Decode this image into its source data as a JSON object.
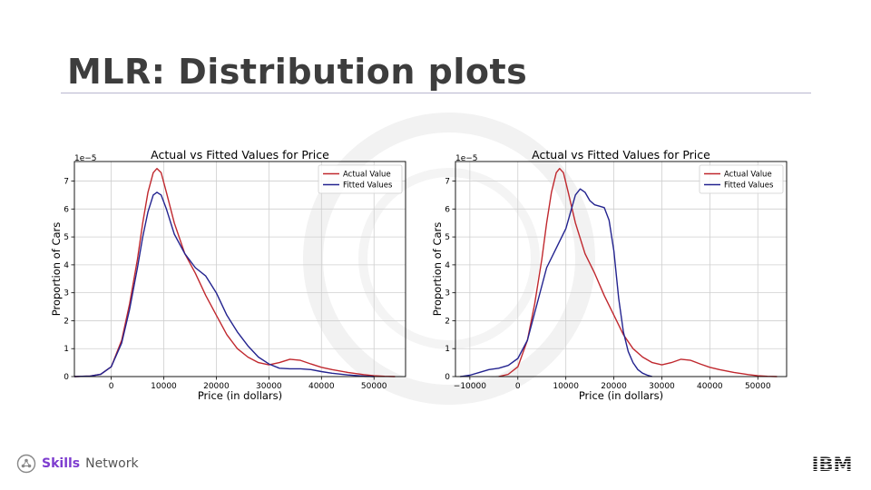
{
  "slide": {
    "title": "MLR: Distribution plots"
  },
  "footer": {
    "brand_bold": "Skills",
    "brand_rest": "Network",
    "ibm_logo": "IBM"
  },
  "colors": {
    "actual": "#c0282e",
    "fitted": "#23238f",
    "brand": "#7d3ccf",
    "grid": "#cfcfcf"
  },
  "chart_data": [
    {
      "type": "line",
      "title": "Actual vs Fitted Values for Price",
      "xlabel": "Price (in dollars)",
      "ylabel": "Proportion of Cars",
      "y_scale_label": "1e−5",
      "xlim": [
        -7000,
        56000
      ],
      "ylim": [
        0,
        7.7
      ],
      "xticks": [
        0,
        10000,
        20000,
        30000,
        40000,
        50000
      ],
      "yticks": [
        0,
        1,
        2,
        3,
        4,
        5,
        6,
        7
      ],
      "grid": true,
      "legend_position": "top-right",
      "series": [
        {
          "name": "Actual Value",
          "color": "#c0282e",
          "x": [
            -7000,
            -4000,
            -2000,
            0,
            2000,
            3500,
            5000,
            6000,
            7000,
            8000,
            8700,
            9500,
            10500,
            12000,
            14000,
            16000,
            18000,
            20000,
            22000,
            24000,
            26000,
            28000,
            30000,
            32000,
            34000,
            36000,
            38000,
            40000,
            42000,
            45000,
            48000,
            50000,
            52000,
            54000
          ],
          "y": [
            0,
            0.02,
            0.08,
            0.35,
            1.3,
            2.6,
            4.2,
            5.5,
            6.6,
            7.3,
            7.45,
            7.3,
            6.6,
            5.5,
            4.4,
            3.7,
            2.9,
            2.2,
            1.5,
            1.0,
            0.7,
            0.5,
            0.42,
            0.5,
            0.62,
            0.58,
            0.45,
            0.33,
            0.25,
            0.15,
            0.07,
            0.03,
            0.01,
            0
          ]
        },
        {
          "name": "Fitted Values",
          "color": "#23238f",
          "x": [
            -7000,
            -4000,
            -2000,
            0,
            2000,
            3500,
            5000,
            6000,
            7000,
            8000,
            8700,
            9500,
            10500,
            12000,
            14000,
            16000,
            18000,
            20000,
            22000,
            24000,
            26000,
            28000,
            30000,
            32000,
            34000,
            36000,
            38000,
            40000,
            42000,
            45000,
            48000,
            50000
          ],
          "y": [
            0,
            0.02,
            0.08,
            0.35,
            1.2,
            2.4,
            3.9,
            5.0,
            5.9,
            6.5,
            6.6,
            6.5,
            6.0,
            5.1,
            4.4,
            3.9,
            3.6,
            3.0,
            2.2,
            1.6,
            1.1,
            0.7,
            0.45,
            0.3,
            0.28,
            0.28,
            0.25,
            0.18,
            0.12,
            0.06,
            0.02,
            0
          ]
        }
      ]
    },
    {
      "type": "line",
      "title": "Actual vs Fitted Values for Price",
      "xlabel": "Price (in dollars)",
      "ylabel": "Proportion of Cars",
      "y_scale_label": "1e−5",
      "xlim": [
        -13000,
        56000
      ],
      "ylim": [
        0,
        7.7
      ],
      "xticks": [
        -10000,
        0,
        10000,
        20000,
        30000,
        40000,
        50000
      ],
      "yticks": [
        0,
        1,
        2,
        3,
        4,
        5,
        6,
        7
      ],
      "grid": true,
      "legend_position": "top-right",
      "series": [
        {
          "name": "Actual Value",
          "color": "#c0282e",
          "x": [
            -4000,
            -2000,
            0,
            2000,
            3500,
            5000,
            6000,
            7000,
            8000,
            8700,
            9500,
            10500,
            12000,
            14000,
            16000,
            18000,
            20000,
            22000,
            24000,
            26000,
            28000,
            30000,
            32000,
            34000,
            36000,
            38000,
            40000,
            42000,
            45000,
            48000,
            50000,
            52000,
            54000
          ],
          "y": [
            0,
            0.08,
            0.35,
            1.3,
            2.6,
            4.2,
            5.5,
            6.6,
            7.3,
            7.45,
            7.3,
            6.6,
            5.5,
            4.4,
            3.7,
            2.9,
            2.2,
            1.5,
            1.0,
            0.7,
            0.5,
            0.42,
            0.5,
            0.62,
            0.58,
            0.45,
            0.33,
            0.25,
            0.15,
            0.07,
            0.03,
            0.01,
            0
          ]
        },
        {
          "name": "Fitted Values",
          "color": "#23238f",
          "x": [
            -12000,
            -10000,
            -8000,
            -6000,
            -4000,
            -2000,
            0,
            2000,
            4000,
            6000,
            8000,
            10000,
            12000,
            13000,
            14000,
            15000,
            16000,
            17000,
            18000,
            19000,
            20000,
            21000,
            22000,
            23000,
            24000,
            25000,
            26000,
            27000,
            28000
          ],
          "y": [
            0,
            0.05,
            0.15,
            0.25,
            0.3,
            0.4,
            0.65,
            1.3,
            2.6,
            3.9,
            4.6,
            5.3,
            6.5,
            6.72,
            6.6,
            6.3,
            6.15,
            6.1,
            6.05,
            5.6,
            4.5,
            2.8,
            1.6,
            0.9,
            0.5,
            0.25,
            0.12,
            0.05,
            0
          ]
        }
      ]
    }
  ]
}
